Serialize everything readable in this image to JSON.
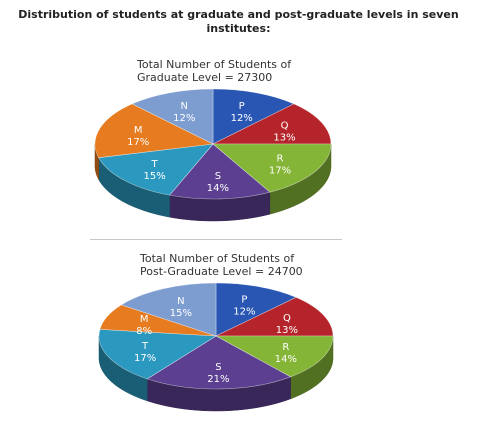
{
  "heading": {
    "line1": "Distribution of students at graduate and post-graduate levels in seven",
    "line2": "institutes:"
  },
  "chart_data": [
    {
      "type": "pie",
      "title_line1": "Total Number of Students of",
      "title_line2": "Graduate Level = 27300",
      "categories": [
        "P",
        "Q",
        "R",
        "S",
        "T",
        "M",
        "N"
      ],
      "values": [
        12,
        13,
        17,
        14,
        15,
        17,
        12
      ],
      "value_labels": [
        "12%",
        "13%",
        "17%",
        "14%",
        "15%",
        "17%",
        "12%"
      ],
      "colors": [
        "#2956b2",
        "#b5242a",
        "#84b536",
        "#5c3f91",
        "#2a98bf",
        "#e67b1f",
        "#7d9dd0"
      ]
    },
    {
      "type": "pie",
      "title_line1": "Total Number of Students of",
      "title_line2": "Post-Graduate Level = 24700",
      "categories": [
        "P",
        "Q",
        "R",
        "S",
        "T",
        "M",
        "N"
      ],
      "values": [
        12,
        13,
        14,
        21,
        17,
        8,
        15
      ],
      "value_labels": [
        "12%",
        "13%",
        "14%",
        "21%",
        "17%",
        "8%",
        "15%"
      ],
      "colors": [
        "#2956b2",
        "#b5242a",
        "#84b536",
        "#5c3f91",
        "#2a98bf",
        "#e67b1f",
        "#7d9dd0"
      ]
    }
  ]
}
